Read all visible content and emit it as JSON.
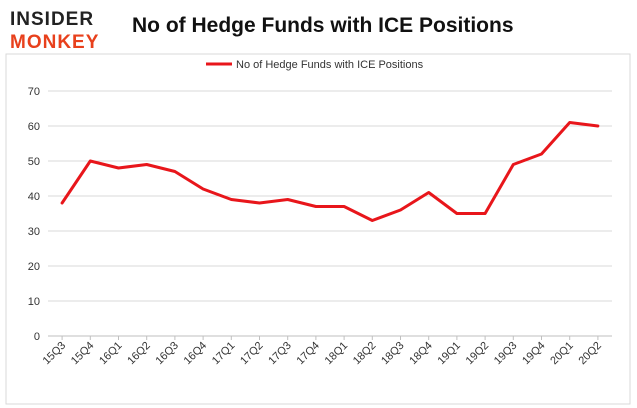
{
  "logo": {
    "line1": "INSIDER",
    "line2": "MONKEY",
    "line1_color": "#222222",
    "line2_color": "#e8401c"
  },
  "chart_data": {
    "type": "line",
    "title": "No of Hedge Funds with ICE Positions",
    "xlabel": "",
    "ylabel": "",
    "ylim": [
      0,
      70
    ],
    "yticks": [
      0,
      10,
      20,
      30,
      40,
      50,
      60,
      70
    ],
    "grid": true,
    "legend_position": "top-center",
    "categories": [
      "15Q3",
      "15Q4",
      "16Q1",
      "16Q2",
      "16Q3",
      "16Q4",
      "17Q1",
      "17Q2",
      "17Q3",
      "17Q4",
      "18Q1",
      "18Q2",
      "18Q3",
      "18Q4",
      "19Q1",
      "19Q2",
      "19Q3",
      "19Q4",
      "20Q1",
      "20Q2"
    ],
    "series": [
      {
        "name": "No of Hedge Funds with ICE Positions",
        "color": "#e8161b",
        "values": [
          38,
          50,
          48,
          49,
          47,
          42,
          39,
          38,
          39,
          37,
          37,
          33,
          36,
          41,
          35,
          35,
          49,
          52,
          61,
          60
        ]
      }
    ]
  }
}
